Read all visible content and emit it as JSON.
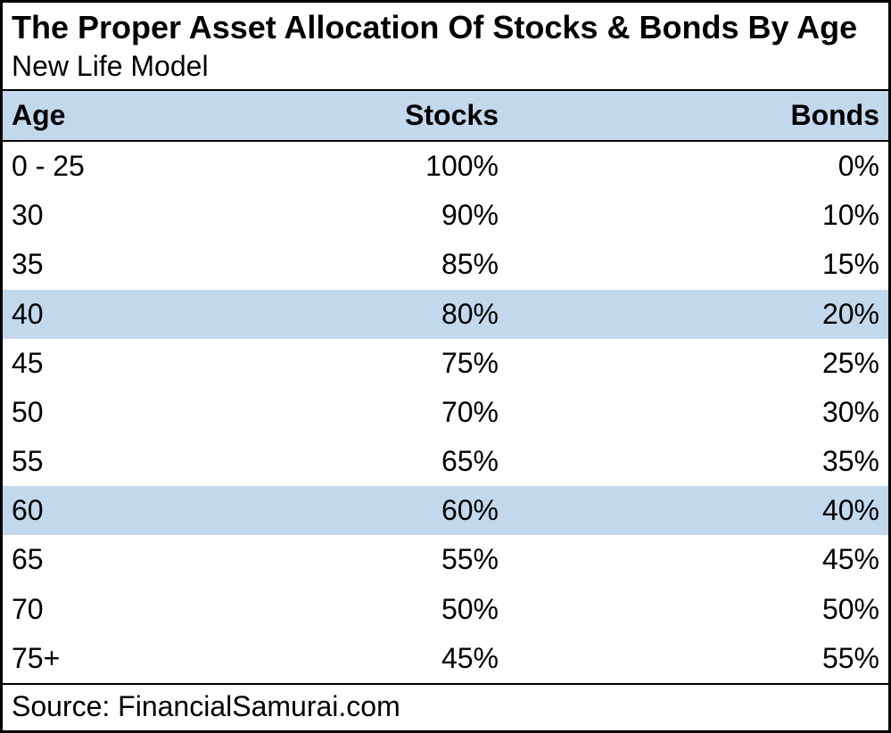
{
  "header": {
    "title": "The Proper Asset Allocation Of Stocks & Bonds By Age",
    "subtitle": "New Life Model"
  },
  "table": {
    "type": "table",
    "background_color": "#ffffff",
    "border_color": "#000000",
    "header_bg": "#c2d8ec",
    "highlight_bg": "#c2d8ec",
    "font_size_pt": 24,
    "columns": [
      {
        "key": "age",
        "label": "Age",
        "align": "left",
        "width_pct": 34
      },
      {
        "key": "stocks",
        "label": "Stocks",
        "align": "right",
        "width_pct": 23
      },
      {
        "key": "bonds",
        "label": "Bonds",
        "align": "right",
        "width_pct": 43
      }
    ],
    "rows": [
      {
        "age": "0 - 25",
        "stocks": "100%",
        "bonds": "0%",
        "highlight": false
      },
      {
        "age": "30",
        "stocks": "90%",
        "bonds": "10%",
        "highlight": false
      },
      {
        "age": "35",
        "stocks": "85%",
        "bonds": "15%",
        "highlight": false
      },
      {
        "age": "40",
        "stocks": "80%",
        "bonds": "20%",
        "highlight": true
      },
      {
        "age": "45",
        "stocks": "75%",
        "bonds": "25%",
        "highlight": false
      },
      {
        "age": "50",
        "stocks": "70%",
        "bonds": "30%",
        "highlight": false
      },
      {
        "age": "55",
        "stocks": "65%",
        "bonds": "35%",
        "highlight": false
      },
      {
        "age": "60",
        "stocks": "60%",
        "bonds": "40%",
        "highlight": true
      },
      {
        "age": "65",
        "stocks": "55%",
        "bonds": "45%",
        "highlight": false
      },
      {
        "age": "70",
        "stocks": "50%",
        "bonds": "50%",
        "highlight": false
      },
      {
        "age": "75+",
        "stocks": "45%",
        "bonds": "55%",
        "highlight": false
      }
    ]
  },
  "footer": {
    "source_label": "Source: FinancialSamurai.com"
  }
}
